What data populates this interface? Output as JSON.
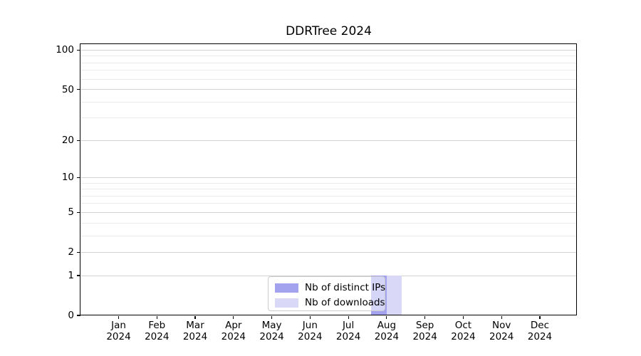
{
  "title": "DDRTree 2024",
  "colors": {
    "grid_major": "#d2d2d2",
    "grid_minor": "#eaeaea",
    "axis": "#000000",
    "legend_border": "#cccccc"
  },
  "chart_data": {
    "type": "bar",
    "title": "DDRTree 2024",
    "categories": [
      "Jan",
      "Feb",
      "Mar",
      "Apr",
      "May",
      "Jun",
      "Jul",
      "Aug",
      "Sep",
      "Oct",
      "Nov",
      "Dec"
    ],
    "category_year": "2024",
    "series": [
      {
        "name": "Nb of distinct IPs",
        "color": "#a2a2ee",
        "values": [
          0,
          0,
          0,
          0,
          0,
          0,
          0,
          1,
          0,
          0,
          0,
          0
        ]
      },
      {
        "name": "Nb of downloads",
        "color": "#d9d9f7",
        "values": [
          0,
          0,
          0,
          0,
          0,
          0,
          0,
          1,
          0,
          0,
          0,
          0
        ]
      }
    ],
    "y_axis": {
      "scale": "log1p",
      "major_ticks": [
        0,
        1,
        2,
        5,
        10,
        20,
        50,
        100
      ],
      "minor_gridlines": [
        3,
        4,
        6,
        7,
        8,
        9,
        30,
        40,
        60,
        70,
        80,
        90
      ],
      "max": 111
    },
    "xlabel": "",
    "ylabel": "",
    "grid": true,
    "legend_position": "lower center"
  }
}
